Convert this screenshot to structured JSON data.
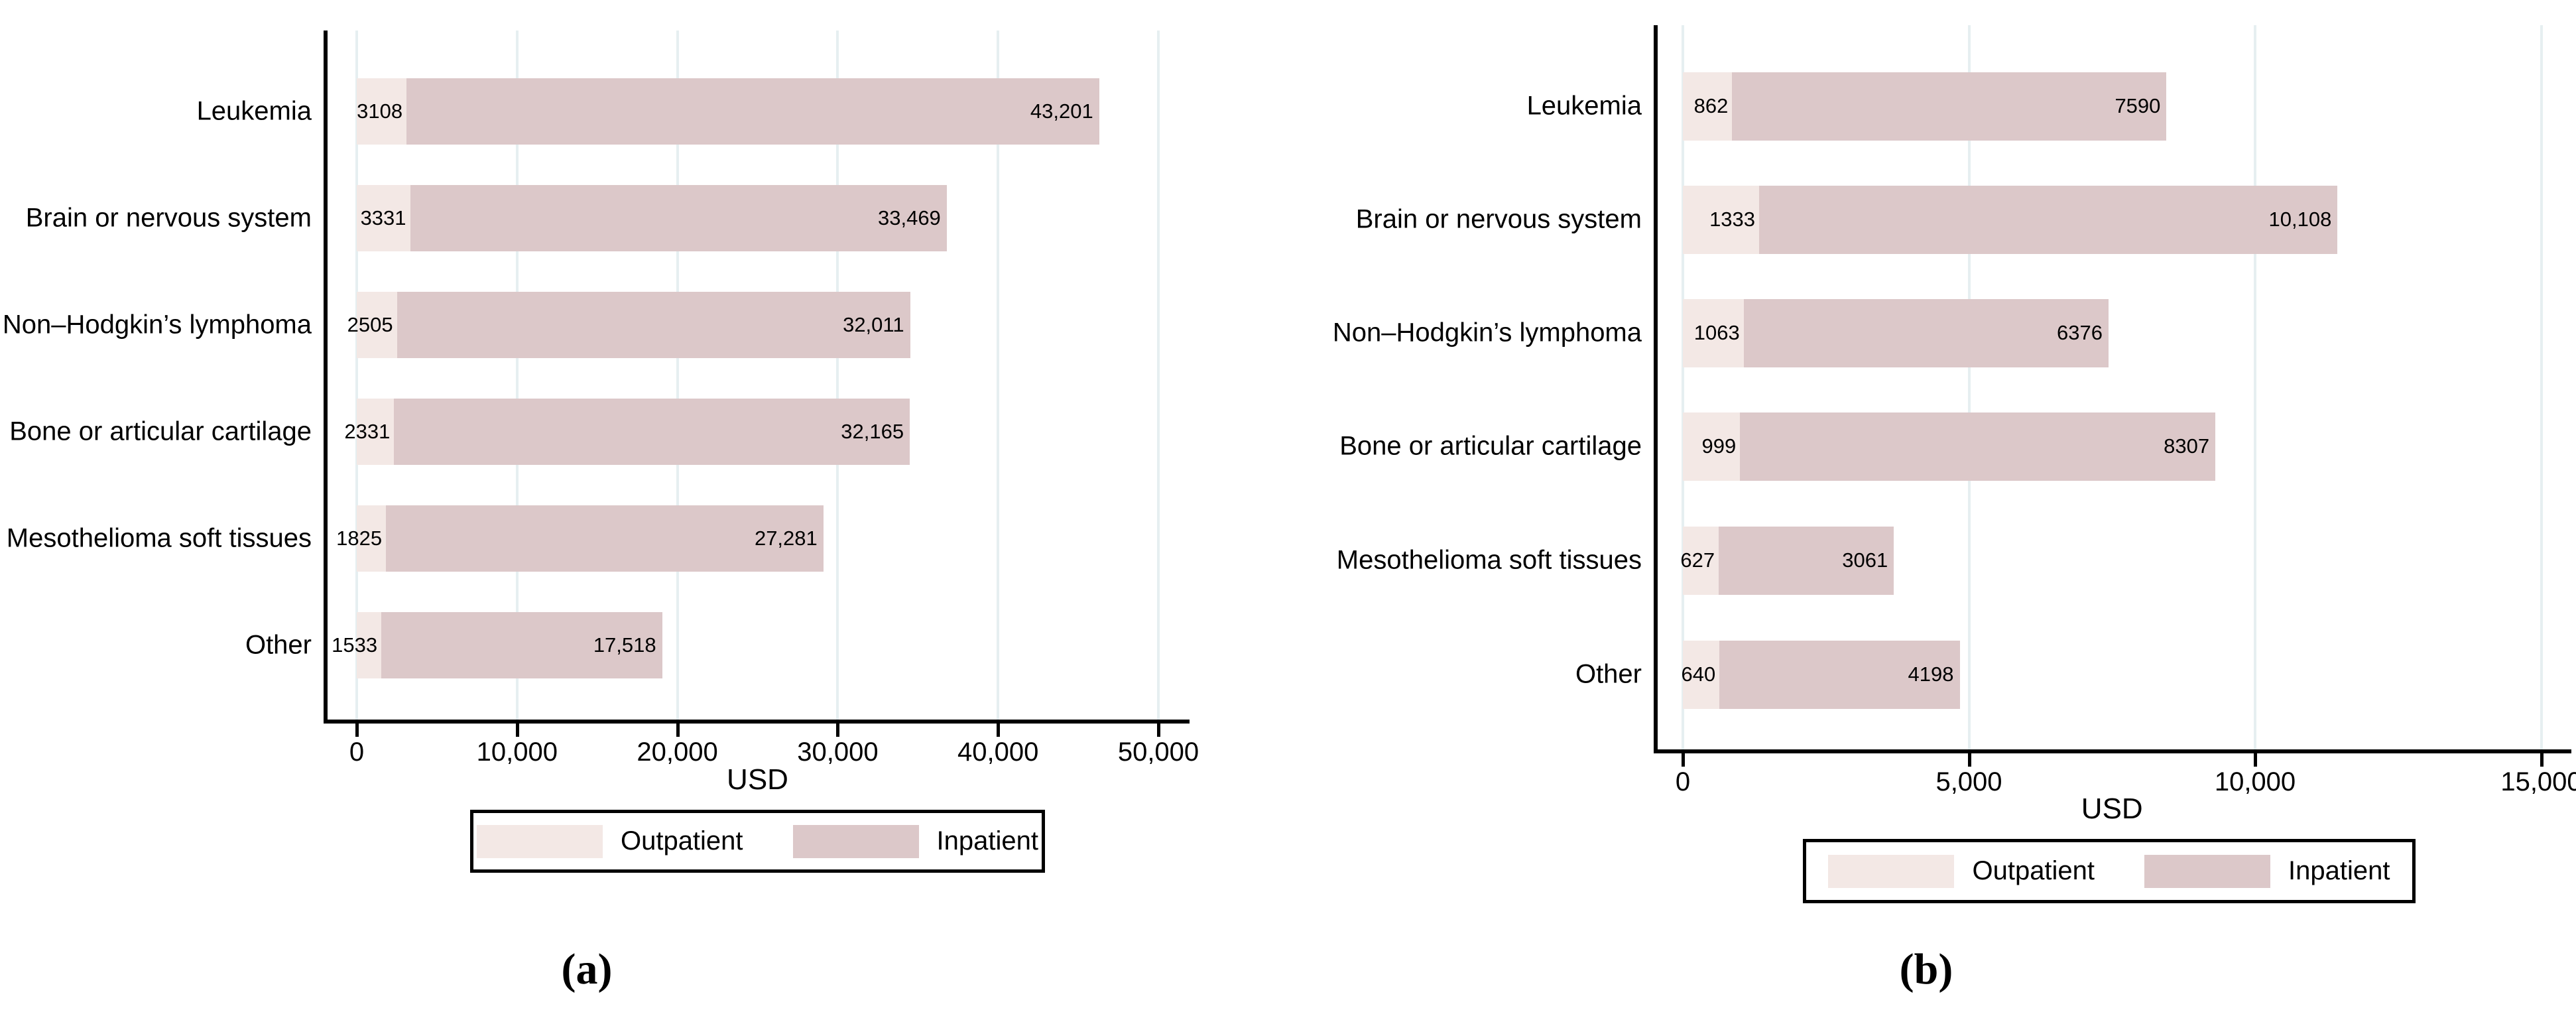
{
  "colors": {
    "outpatient": "#f3e8e5",
    "inpatient": "#dcc8c9",
    "gridline": "#e6eff1",
    "axis": "#000000",
    "background": "#ffffff",
    "text": "#000000"
  },
  "panel_labels": [
    "(a)",
    "(b)"
  ],
  "legend": {
    "items": [
      "Outpatient",
      "Inpatient"
    ]
  },
  "chart_data": [
    {
      "type": "bar",
      "orientation": "horizontal",
      "stacked": true,
      "panel_label": "(a)",
      "xlabel": "USD",
      "xlim": [
        0,
        50000
      ],
      "xticks": [
        0,
        10000,
        20000,
        30000,
        40000,
        50000
      ],
      "xtick_labels": [
        "0",
        "10,000",
        "20,000",
        "30,000",
        "40,000",
        "50,000"
      ],
      "grid": "vertical",
      "legend_position": "bottom",
      "categories": [
        "Leukemia",
        "Brain or nervous system",
        "Non–Hodgkin’s lymphoma",
        "Bone or articular cartilage",
        "Mesothelioma soft tissues",
        "Other"
      ],
      "series": [
        {
          "name": "Outpatient",
          "color": "#f3e8e5",
          "values": [
            3108,
            3331,
            2505,
            2331,
            1825,
            1533
          ],
          "value_labels": [
            "3108",
            "3331",
            "2505",
            "2331",
            "1825",
            "1533"
          ]
        },
        {
          "name": "Inpatient",
          "color": "#dcc8c9",
          "values": [
            43201,
            33469,
            32011,
            32165,
            27281,
            17518
          ],
          "value_labels": [
            "43,201",
            "33,469",
            "32,011",
            "32,165",
            "27,281",
            "17,518"
          ]
        }
      ]
    },
    {
      "type": "bar",
      "orientation": "horizontal",
      "stacked": true,
      "panel_label": "(b)",
      "xlabel": "USD",
      "xlim": [
        0,
        15000
      ],
      "xticks": [
        0,
        5000,
        10000,
        15000
      ],
      "xtick_labels": [
        "0",
        "5,000",
        "10,000",
        "15,000"
      ],
      "grid": "vertical",
      "legend_position": "bottom",
      "categories": [
        "Leukemia",
        "Brain or nervous system",
        "Non–Hodgkin’s lymphoma",
        "Bone or articular cartilage",
        "Mesothelioma soft tissues",
        "Other"
      ],
      "series": [
        {
          "name": "Outpatient",
          "color": "#f3e8e5",
          "values": [
            862,
            1333,
            1063,
            999,
            627,
            640
          ],
          "value_labels": [
            "862",
            "1333",
            "1063",
            "999",
            "627",
            "640"
          ]
        },
        {
          "name": "Inpatient",
          "color": "#dcc8c9",
          "values": [
            7590,
            10108,
            6376,
            8307,
            3061,
            4198
          ],
          "value_labels": [
            "7590",
            "10,108",
            "6376",
            "8307",
            "3061",
            "4198"
          ]
        }
      ]
    }
  ]
}
